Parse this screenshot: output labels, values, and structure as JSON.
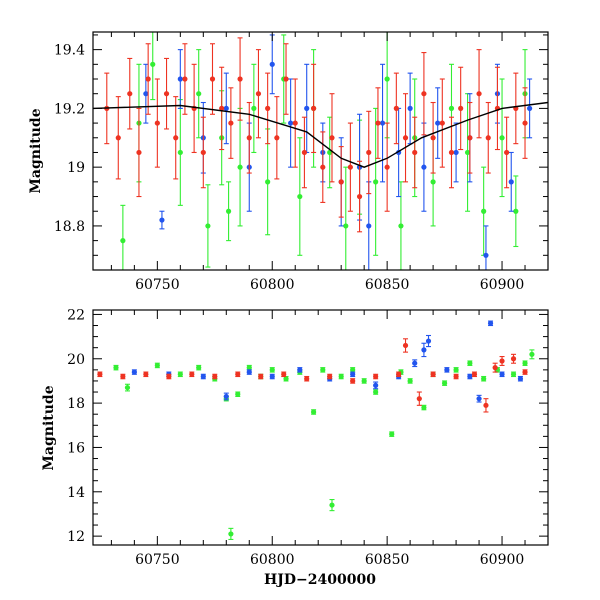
{
  "colors": {
    "green": "#33ee33",
    "blue": "#2255ee",
    "red": "#ee3322",
    "trend": "#000000"
  },
  "chart_data": [
    {
      "type": "scatter",
      "panel": "top",
      "title": "",
      "xlabel": "",
      "ylabel": "Magnitude",
      "xlim": [
        60722,
        60920
      ],
      "ylim": [
        19.46,
        18.65
      ],
      "y_inverted": true,
      "xticks": [
        60750,
        60800,
        60850,
        60900
      ],
      "yticks": [
        18.8,
        19,
        19.2,
        19.4
      ],
      "ytick_labels": [
        "18.8",
        "19",
        "19.2",
        "19.4"
      ],
      "error_bars": true,
      "series": [
        {
          "color": "green",
          "points": [
            [
              60735,
              18.75,
              0.12
            ],
            [
              60742,
              19.15,
              0.2
            ],
            [
              60748,
              19.35,
              0.12
            ],
            [
              60760,
              19.05,
              0.18
            ],
            [
              60768,
              19.25,
              0.15
            ],
            [
              60772,
              18.8,
              0.14
            ],
            [
              60778,
              19.1,
              0.16
            ],
            [
              60781,
              18.85,
              0.1
            ],
            [
              60786,
              19.0,
              0.2
            ],
            [
              60792,
              19.2,
              0.15
            ],
            [
              60798,
              18.95,
              0.18
            ],
            [
              60805,
              19.3,
              0.15
            ],
            [
              60812,
              18.9,
              0.2
            ],
            [
              60818,
              19.2,
              0.2
            ],
            [
              60825,
              19.05,
              0.12
            ],
            [
              60832,
              18.8,
              0.2
            ],
            [
              60838,
              19.0,
              0.16
            ],
            [
              60845,
              18.95,
              0.25
            ],
            [
              60850,
              19.3,
              0.2
            ],
            [
              60856,
              18.8,
              0.15
            ],
            [
              60862,
              19.1,
              0.2
            ],
            [
              60870,
              18.95,
              0.15
            ],
            [
              60878,
              19.2,
              0.15
            ],
            [
              60885,
              19.05,
              0.2
            ],
            [
              60892,
              18.85,
              0.15
            ],
            [
              60900,
              19.1,
              0.2
            ],
            [
              60906,
              18.85,
              0.12
            ],
            [
              60910,
              19.25,
              0.15
            ]
          ]
        },
        {
          "color": "blue",
          "points": [
            [
              60745,
              19.25,
              0.1
            ],
            [
              60752,
              18.82,
              0.03
            ],
            [
              60760,
              19.3,
              0.1
            ],
            [
              60770,
              19.1,
              0.12
            ],
            [
              60780,
              19.2,
              0.12
            ],
            [
              60790,
              19.0,
              0.15
            ],
            [
              60800,
              19.35,
              0.1
            ],
            [
              60808,
              19.15,
              0.15
            ],
            [
              60815,
              19.2,
              0.15
            ],
            [
              60822,
              19.05,
              0.1
            ],
            [
              60830,
              18.95,
              0.15
            ],
            [
              60838,
              19.0,
              0.18
            ],
            [
              60842,
              18.8,
              0.15
            ],
            [
              60848,
              19.15,
              0.2
            ],
            [
              60855,
              19.05,
              0.15
            ],
            [
              60860,
              19.2,
              0.12
            ],
            [
              60866,
              19.0,
              0.15
            ],
            [
              60872,
              19.15,
              0.12
            ],
            [
              60880,
              19.05,
              0.1
            ],
            [
              60886,
              19.1,
              0.15
            ],
            [
              60893,
              18.7,
              0.1
            ],
            [
              60898,
              19.25,
              0.1
            ],
            [
              60904,
              18.95,
              0.1
            ],
            [
              60912,
              19.2,
              0.1
            ]
          ]
        },
        {
          "color": "red",
          "points": [
            [
              60728,
              19.2,
              0.12
            ],
            [
              60733,
              19.1,
              0.14
            ],
            [
              60738,
              19.25,
              0.12
            ],
            [
              60742,
              19.05,
              0.15
            ],
            [
              60746,
              19.3,
              0.12
            ],
            [
              60750,
              19.15,
              0.15
            ],
            [
              60754,
              19.25,
              0.12
            ],
            [
              60758,
              19.1,
              0.14
            ],
            [
              60762,
              19.3,
              0.12
            ],
            [
              60766,
              19.2,
              0.15
            ],
            [
              60770,
              19.05,
              0.12
            ],
            [
              60774,
              19.3,
              0.12
            ],
            [
              60778,
              19.2,
              0.14
            ],
            [
              60782,
              19.15,
              0.12
            ],
            [
              60786,
              19.3,
              0.14
            ],
            [
              60790,
              19.1,
              0.12
            ],
            [
              60794,
              19.25,
              0.15
            ],
            [
              60798,
              19.2,
              0.12
            ],
            [
              60802,
              19.1,
              0.14
            ],
            [
              60806,
              19.3,
              0.12
            ],
            [
              60810,
              19.15,
              0.15
            ],
            [
              60814,
              19.05,
              0.12
            ],
            [
              60818,
              19.2,
              0.15
            ],
            [
              60822,
              19.0,
              0.12
            ],
            [
              60826,
              19.1,
              0.15
            ],
            [
              60830,
              18.95,
              0.12
            ],
            [
              60834,
              19.0,
              0.15
            ],
            [
              60838,
              18.9,
              0.12
            ],
            [
              60842,
              19.05,
              0.14
            ],
            [
              60846,
              19.15,
              0.12
            ],
            [
              60850,
              19.0,
              0.15
            ],
            [
              60854,
              19.2,
              0.12
            ],
            [
              60858,
              19.1,
              0.15
            ],
            [
              60862,
              19.05,
              0.12
            ],
            [
              60866,
              19.25,
              0.14
            ],
            [
              60870,
              19.1,
              0.12
            ],
            [
              60874,
              19.15,
              0.15
            ],
            [
              60878,
              19.05,
              0.12
            ],
            [
              60882,
              19.2,
              0.14
            ],
            [
              60886,
              19.1,
              0.12
            ],
            [
              60890,
              19.25,
              0.15
            ],
            [
              60894,
              19.1,
              0.12
            ],
            [
              60898,
              19.2,
              0.14
            ],
            [
              60902,
              19.05,
              0.12
            ],
            [
              60906,
              19.2,
              0.12
            ],
            [
              60910,
              19.15,
              0.12
            ]
          ]
        }
      ],
      "trend": [
        [
          60722,
          19.2
        ],
        [
          60760,
          19.21
        ],
        [
          60790,
          19.18
        ],
        [
          60815,
          19.12
        ],
        [
          60830,
          19.03
        ],
        [
          60840,
          19.0
        ],
        [
          60850,
          19.03
        ],
        [
          60865,
          19.1
        ],
        [
          60885,
          19.16
        ],
        [
          60900,
          19.2
        ],
        [
          60920,
          19.22
        ]
      ]
    },
    {
      "type": "scatter",
      "panel": "bottom",
      "title": "",
      "xlabel": "HJD−2400000",
      "ylabel": "Magnitude",
      "xlim": [
        60722,
        60920
      ],
      "ylim": [
        22.2,
        11.6
      ],
      "y_inverted": true,
      "xticks": [
        60750,
        60800,
        60850,
        60900
      ],
      "yticks": [
        12,
        14,
        16,
        18,
        20,
        22
      ],
      "ytick_labels": [
        "12",
        "14",
        "16",
        "18",
        "20",
        "22"
      ],
      "error_bars": true,
      "series": [
        {
          "color": "green",
          "points": [
            [
              60732,
              19.6,
              0.1
            ],
            [
              60737,
              18.7,
              0.15
            ],
            [
              60750,
              19.7,
              0.1
            ],
            [
              60760,
              19.3,
              0.1
            ],
            [
              60768,
              19.6,
              0.1
            ],
            [
              60775,
              19.1,
              0.1
            ],
            [
              60780,
              18.2,
              0.1
            ],
            [
              60782,
              12.1,
              0.25
            ],
            [
              60785,
              18.4,
              0.1
            ],
            [
              60790,
              19.6,
              0.1
            ],
            [
              60795,
              19.2,
              0.1
            ],
            [
              60800,
              19.5,
              0.1
            ],
            [
              60806,
              19.1,
              0.1
            ],
            [
              60812,
              19.4,
              0.1
            ],
            [
              60818,
              17.6,
              0.1
            ],
            [
              60822,
              19.5,
              0.1
            ],
            [
              60826,
              13.4,
              0.25
            ],
            [
              60830,
              19.2,
              0.1
            ],
            [
              60835,
              19.5,
              0.1
            ],
            [
              60840,
              19.0,
              0.1
            ],
            [
              60845,
              18.5,
              0.1
            ],
            [
              60852,
              16.6,
              0.1
            ],
            [
              60856,
              19.4,
              0.1
            ],
            [
              60860,
              19.0,
              0.1
            ],
            [
              60866,
              17.8,
              0.1
            ],
            [
              60870,
              19.3,
              0.1
            ],
            [
              60875,
              18.9,
              0.1
            ],
            [
              60880,
              19.5,
              0.1
            ],
            [
              60886,
              19.8,
              0.1
            ],
            [
              60892,
              19.1,
              0.1
            ],
            [
              60898,
              19.5,
              0.1
            ],
            [
              60905,
              19.3,
              0.1
            ],
            [
              60910,
              19.8,
              0.1
            ],
            [
              60913,
              20.2,
              0.2
            ]
          ]
        },
        {
          "color": "blue",
          "points": [
            [
              60740,
              19.4,
              0.1
            ],
            [
              60755,
              19.3,
              0.1
            ],
            [
              60770,
              19.2,
              0.1
            ],
            [
              60780,
              18.3,
              0.15
            ],
            [
              60790,
              19.4,
              0.1
            ],
            [
              60800,
              19.2,
              0.1
            ],
            [
              60812,
              19.5,
              0.1
            ],
            [
              60825,
              19.1,
              0.1
            ],
            [
              60835,
              19.3,
              0.1
            ],
            [
              60845,
              18.8,
              0.15
            ],
            [
              60855,
              19.2,
              0.1
            ],
            [
              60862,
              19.8,
              0.15
            ],
            [
              60866,
              20.4,
              0.3
            ],
            [
              60868,
              20.8,
              0.25
            ],
            [
              60876,
              19.5,
              0.1
            ],
            [
              60886,
              19.2,
              0.1
            ],
            [
              60890,
              18.2,
              0.15
            ],
            [
              60895,
              21.6,
              0.1
            ],
            [
              60900,
              19.3,
              0.1
            ],
            [
              60908,
              19.1,
              0.1
            ]
          ]
        },
        {
          "color": "red",
          "points": [
            [
              60725,
              19.3,
              0.1
            ],
            [
              60735,
              19.2,
              0.1
            ],
            [
              60745,
              19.3,
              0.1
            ],
            [
              60755,
              19.2,
              0.1
            ],
            [
              60765,
              19.3,
              0.1
            ],
            [
              60775,
              19.2,
              0.1
            ],
            [
              60785,
              19.3,
              0.1
            ],
            [
              60795,
              19.2,
              0.1
            ],
            [
              60805,
              19.3,
              0.1
            ],
            [
              60815,
              19.1,
              0.1
            ],
            [
              60825,
              19.2,
              0.1
            ],
            [
              60835,
              19.0,
              0.1
            ],
            [
              60845,
              19.2,
              0.1
            ],
            [
              60855,
              19.3,
              0.1
            ],
            [
              60858,
              20.6,
              0.3
            ],
            [
              60864,
              18.2,
              0.3
            ],
            [
              60870,
              19.3,
              0.1
            ],
            [
              60880,
              19.2,
              0.1
            ],
            [
              60888,
              19.3,
              0.1
            ],
            [
              60893,
              17.9,
              0.3
            ],
            [
              60897,
              19.6,
              0.2
            ],
            [
              60900,
              19.9,
              0.2
            ],
            [
              60905,
              20.0,
              0.2
            ],
            [
              60910,
              19.4,
              0.1
            ]
          ]
        }
      ]
    }
  ]
}
